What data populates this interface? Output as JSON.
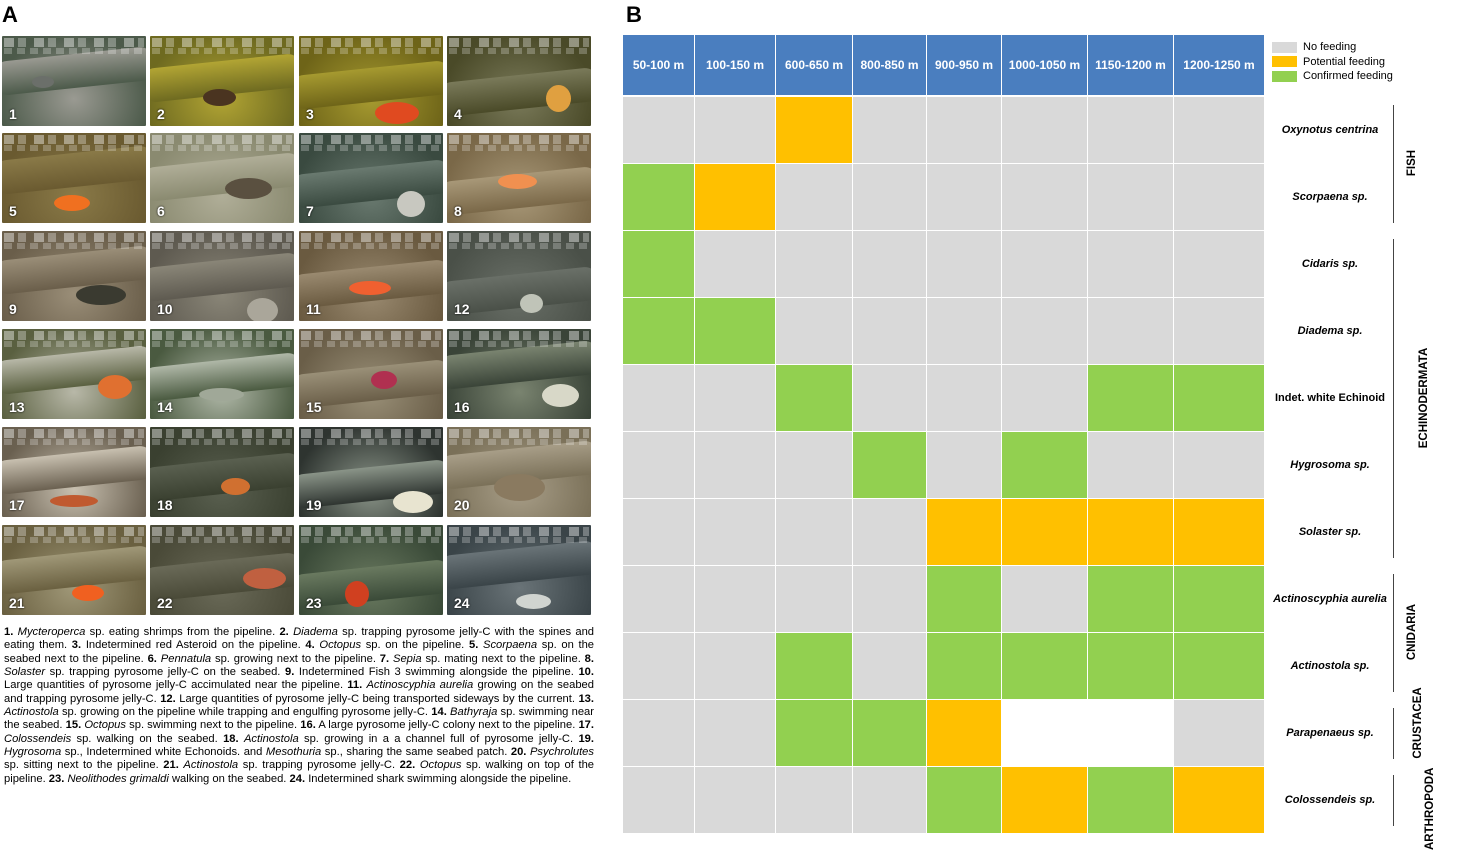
{
  "panels": {
    "a": "A",
    "b": "B"
  },
  "photos": [
    {
      "n": "1",
      "bg": "#4c5a4a",
      "pipe": "#9a9a92",
      "subject": "#6b6f6a"
    },
    {
      "n": "2",
      "bg": "#6e6a20",
      "pipe": "#b2a534",
      "subject": "#4a3420"
    },
    {
      "n": "3",
      "bg": "#6e6418",
      "pipe": "#a69a30",
      "subject": "#e04a20"
    },
    {
      "n": "4",
      "bg": "#4a4a28",
      "pipe": "#7a7a5a",
      "subject": "#e0a040"
    },
    {
      "n": "5",
      "bg": "#6a5a30",
      "pipe": "#8a7a48",
      "subject": "#f07020"
    },
    {
      "n": "6",
      "bg": "#8a8a70",
      "pipe": "#b0ae98",
      "subject": "#5a5040"
    },
    {
      "n": "7",
      "bg": "#3a4a40",
      "pipe": "#6a7a70",
      "subject": "#c8c8c0"
    },
    {
      "n": "8",
      "bg": "#7a6848",
      "pipe": "#a89878",
      "subject": "#f09050"
    },
    {
      "n": "9",
      "bg": "#6a5e4a",
      "pipe": "#9a8e78",
      "subject": "#3a3a30"
    },
    {
      "n": "10",
      "bg": "#5e5a50",
      "pipe": "#8a8678",
      "subject": "#aaa69a"
    },
    {
      "n": "11",
      "bg": "#6a5a40",
      "pipe": "#9a8a70",
      "subject": "#f06030"
    },
    {
      "n": "12",
      "bg": "#4a5048",
      "pipe": "#6a7068",
      "subject": "#c0c4b8"
    },
    {
      "n": "13",
      "bg": "#5a6040",
      "pipe": "#b8b8a8",
      "subject": "#e07030"
    },
    {
      "n": "14",
      "bg": "#4a5a40",
      "pipe": "#b0b8a8",
      "subject": "#a0a898"
    },
    {
      "n": "15",
      "bg": "#6a5e48",
      "pipe": "#9a9078",
      "subject": "#b03050"
    },
    {
      "n": "16",
      "bg": "#3a4438",
      "pipe": "#7a8470",
      "subject": "#d8d8c8"
    },
    {
      "n": "17",
      "bg": "#6a6050",
      "pipe": "#c8c0b0",
      "subject": "#c05a30"
    },
    {
      "n": "18",
      "bg": "#3a4030",
      "pipe": "#5a6050",
      "subject": "#d07030"
    },
    {
      "n": "19",
      "bg": "#2e3430",
      "pipe": "#8a9488",
      "subject": "#e8e4d0"
    },
    {
      "n": "20",
      "bg": "#7a7058",
      "pipe": "#a89e88",
      "subject": "#8a7a60"
    },
    {
      "n": "21",
      "bg": "#6a6040",
      "pipe": "#a09878",
      "subject": "#f06020"
    },
    {
      "n": "22",
      "bg": "#4a4a38",
      "pipe": "#6a6a58",
      "subject": "#c06040"
    },
    {
      "n": "23",
      "bg": "#3a4a38",
      "pipe": "#6a7a60",
      "subject": "#d04020"
    },
    {
      "n": "24",
      "bg": "#3a4448",
      "pipe": "#6a7478",
      "subject": "#d0d4d0"
    }
  ],
  "caption": [
    {
      "n": "1.",
      "pre": "",
      "taxon": "Mycteroperca",
      "text": " sp. eating shrimps from the pipeline. "
    },
    {
      "n": "2.",
      "pre": "",
      "taxon": "Diadema",
      "text": " sp. trapping pyrosome jelly-C with the spines and eating them. "
    },
    {
      "n": "3.",
      "pre": "Indetermined red Asteroid on the pipeline. ",
      "taxon": "",
      "text": ""
    },
    {
      "n": "4.",
      "pre": "",
      "taxon": "Octopus",
      "text": " sp. on the pipeline. "
    },
    {
      "n": "5.",
      "pre": "",
      "taxon": "Scorpaena",
      "text": " sp. on the seabed next to the pipeline. "
    },
    {
      "n": "6.",
      "pre": "",
      "taxon": "Pennatula",
      "text": " sp. growing next to the pipeline. "
    },
    {
      "n": "7.",
      "pre": "",
      "taxon": "Sepia",
      "text": " sp. mating next to the pipeline. "
    },
    {
      "n": "8.",
      "pre": "",
      "taxon": "Solaster",
      "text": " sp. trapping pyrosome jelly-C on the seabed. "
    },
    {
      "n": "9.",
      "pre": "Indetermined Fish 3 swimming alongside the pipeline. ",
      "taxon": "",
      "text": ""
    },
    {
      "n": "10.",
      "pre": "Large quantities of pyrosome jelly-C accimulated near the pipeline. ",
      "taxon": "",
      "text": ""
    },
    {
      "n": "11.",
      "pre": "",
      "taxon": "Actinoscyphia aurelia",
      "text": " growing on the seabed and trapping pyrosome jelly-C. "
    },
    {
      "n": "12.",
      "pre": "Large quantities of pyrosome jelly-C being transported sideways by the current. ",
      "taxon": "",
      "text": ""
    },
    {
      "n": "13.",
      "pre": "",
      "taxon": "Actinostola",
      "text": " sp. growing on the pipeline while trapping and engulfing pyrosome jelly-C. "
    },
    {
      "n": "14.",
      "pre": "",
      "taxon": "Bathyraja",
      "text": " sp. swimming near the seabed. "
    },
    {
      "n": "15.",
      "pre": "",
      "taxon": "Octopus",
      "text": " sp. swimming next to the pipeline. "
    },
    {
      "n": "16.",
      "pre": "A large pyrosome jelly-C colony next to the pipeline. ",
      "taxon": "",
      "text": ""
    },
    {
      "n": "17.",
      "pre": "",
      "taxon": "Colossendeis",
      "text": " sp. walking on the seabed. "
    },
    {
      "n": "18.",
      "pre": "",
      "taxon": "Actinostola",
      "text": " sp. growing in a a channel full of pyrosome jelly-C. "
    },
    {
      "n": "19.",
      "pre": "",
      "taxon": "Hygrosoma",
      "text": " sp., Indetermined white Echonoids. and ",
      "taxon2": "Mesothuria",
      "text2": " sp., sharing the same seabed patch. "
    },
    {
      "n": "20.",
      "pre": "",
      "taxon": "Psychrolutes",
      "text": " sp. sitting next to the pipeline. "
    },
    {
      "n": "21.",
      "pre": "",
      "taxon": "Actinostola",
      "text": " sp. trapping pyrosome jelly-C. "
    },
    {
      "n": "22.",
      "pre": "",
      "taxon": "Octopus",
      "text": " sp. walking on top of the pipeline. "
    },
    {
      "n": "23.",
      "pre": "",
      "taxon": "Neolithodes grimaldi",
      "text": " walking on the seabed. "
    },
    {
      "n": "24.",
      "pre": "Indetermined shark swimming alongside the pipeline.",
      "taxon": "",
      "text": ""
    }
  ],
  "chart_data": {
    "type": "heatmap",
    "columns": [
      "50-100 m",
      "100-150 m",
      "600-650 m",
      "800-850 m",
      "900-950 m",
      "1000-1050 m",
      "1150-1200 m",
      "1200-1250 m"
    ],
    "rows": [
      "Oxynotus centrina",
      "Scorpaena sp.",
      "Cidaris sp.",
      "Diadema sp.",
      "Indet. white Echinoid",
      "Hygrosoma sp.",
      "Solaster sp.",
      "Actinoscyphia aurelia",
      "Actinostola sp.",
      "Parapenaeus sp.",
      "Colossendeis sp."
    ],
    "row_italic": [
      true,
      true,
      true,
      true,
      false,
      true,
      true,
      true,
      true,
      true,
      true
    ],
    "legend": [
      {
        "key": "N",
        "label": "No feeding",
        "color": "#d9d9d9"
      },
      {
        "key": "P",
        "label": "Potential feeding",
        "color": "#ffc000"
      },
      {
        "key": "C",
        "label": "Confirmed feeding",
        "color": "#92d050"
      }
    ],
    "empty_color": "#ffffff",
    "header_color": "#4a7ebf",
    "values": [
      [
        "N",
        "N",
        "P",
        "N",
        "N",
        "N",
        "N",
        "N"
      ],
      [
        "C",
        "P",
        "N",
        "N",
        "N",
        "N",
        "N",
        "N"
      ],
      [
        "C",
        "N",
        "N",
        "N",
        "N",
        "N",
        "N",
        "N"
      ],
      [
        "C",
        "C",
        "N",
        "N",
        "N",
        "N",
        "N",
        "N"
      ],
      [
        "N",
        "N",
        "C",
        "N",
        "N",
        "N",
        "C",
        "C"
      ],
      [
        "N",
        "N",
        "N",
        "C",
        "N",
        "C",
        "N",
        "N"
      ],
      [
        "N",
        "N",
        "N",
        "N",
        "P",
        "P",
        "P",
        "P"
      ],
      [
        "N",
        "N",
        "N",
        "N",
        "C",
        "N",
        "C",
        "C"
      ],
      [
        "N",
        "N",
        "C",
        "N",
        "C",
        "C",
        "C",
        "C"
      ],
      [
        "N",
        "N",
        "C",
        "C",
        "P",
        "",
        "",
        "N"
      ],
      [
        "N",
        "N",
        "N",
        "N",
        "C",
        "P",
        "C",
        "P"
      ]
    ],
    "groups": [
      {
        "label": "FISH",
        "rows": [
          0,
          1
        ]
      },
      {
        "label": "ECHINODERMATA",
        "rows": [
          2,
          6
        ]
      },
      {
        "label": "CNIDARIA",
        "rows": [
          7,
          8
        ]
      },
      {
        "label": "CRUSTACEA",
        "rows": [
          9,
          9
        ]
      },
      {
        "label": "ARTHROPODA",
        "rows": [
          10,
          10
        ]
      }
    ]
  }
}
